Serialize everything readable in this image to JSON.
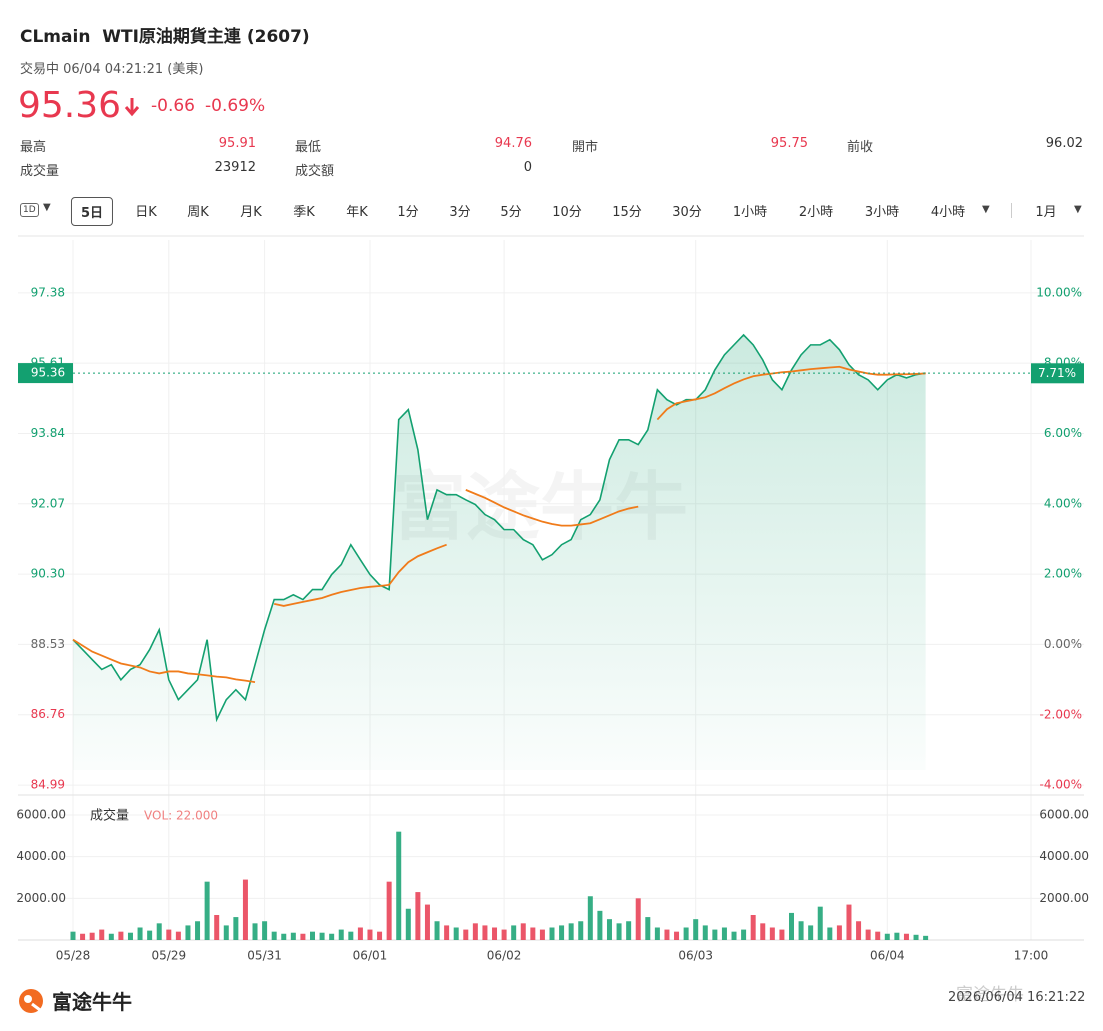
{
  "header": {
    "title": "CLmain  WTI原油期貨主連 (2607)",
    "status": "交易中 06/04 04:21:21 (美東)",
    "price": "95.36",
    "change": "-0.66",
    "change_pct": "-0.69%"
  },
  "stats": [
    [
      "最高",
      "95.91"
    ],
    [
      "最低",
      "94.76"
    ],
    [
      "開市",
      "95.75"
    ],
    [
      "前收",
      "96.02"
    ],
    [
      "成交量",
      "23912"
    ],
    [
      "成交額",
      "0"
    ]
  ],
  "tabs": {
    "icon": "1D",
    "items": [
      "5日",
      "日K",
      "周K",
      "月K",
      "季K",
      "年K",
      "1分",
      "3分",
      "5分",
      "10分",
      "15分",
      "30分",
      "1小時",
      "2小時",
      "3小時",
      "4小時",
      "1月"
    ]
  },
  "footer": {
    "logo_text": "富途牛牛",
    "watermark": "富途牛牛",
    "timestamp": "2026/06/04 16:21:22"
  },
  "chart_data": {
    "type": "line",
    "watermark": "富途牛牛",
    "grid": true,
    "x": [
      0,
      1,
      2,
      3,
      4,
      5,
      6,
      7,
      8,
      9,
      10,
      11,
      12,
      13,
      14,
      15,
      16,
      17,
      18,
      19,
      20,
      21,
      22,
      23,
      24,
      25,
      26,
      27,
      28,
      29,
      30,
      31,
      32,
      33,
      34,
      35,
      36,
      37,
      38,
      39,
      40,
      41,
      42,
      43,
      44,
      45,
      46,
      47,
      48,
      49,
      50,
      51,
      52,
      53,
      54,
      55,
      56,
      57,
      58,
      59,
      60,
      61,
      62,
      63,
      64,
      65,
      66,
      67,
      68,
      69,
      70,
      71,
      72,
      73,
      74,
      75,
      76,
      77,
      78,
      79,
      80,
      81,
      82,
      83,
      84,
      85,
      86,
      87,
      88,
      89
    ],
    "xlim": [
      0,
      100
    ],
    "xticks": [
      {
        "value": 0,
        "label": "05/28"
      },
      {
        "value": 10,
        "label": "05/29"
      },
      {
        "value": 20,
        "label": "05/31"
      },
      {
        "value": 31,
        "label": "06/01"
      },
      {
        "value": 45,
        "label": "06/02"
      },
      {
        "value": 65,
        "label": "06/03"
      },
      {
        "value": 85,
        "label": "06/04"
      },
      {
        "value": 100,
        "label": "17:00"
      }
    ],
    "ylim": [
      84.74,
      98.71
    ],
    "yticks": [
      84.99,
      86.76,
      88.53,
      {
        "value": 90.3,
        "label": "90.30"
      },
      92.07,
      93.84,
      95.61,
      97.38
    ],
    "y2lim": [
      -4.28,
      11.5
    ],
    "y2ticks": [
      {
        "value": -4,
        "label": "-4.00%"
      },
      {
        "value": -2,
        "label": "-2.00%"
      },
      {
        "value": 0,
        "label": "0.00%"
      },
      {
        "value": 2,
        "label": "2.00%"
      },
      {
        "value": 4,
        "label": "4.00%"
      },
      {
        "value": 6,
        "label": "6.00%"
      },
      {
        "value": 8,
        "label": "8.00%"
      },
      {
        "value": 10,
        "label": "10.00%"
      }
    ],
    "last_price": 95.36,
    "last_pct": {
      "value": 7.71,
      "label": "7.71%"
    },
    "series": [
      {
        "color": "#13a070",
        "values": [
          88.65,
          88.4,
          88.15,
          87.9,
          88.02,
          87.64,
          87.9,
          88.02,
          88.4,
          88.9,
          87.64,
          87.14,
          87.39,
          87.64,
          88.65,
          86.64,
          87.14,
          87.39,
          87.14,
          88.02,
          88.9,
          89.66,
          89.66,
          89.78,
          89.66,
          89.91,
          89.91,
          90.29,
          90.54,
          91.04,
          90.66,
          90.29,
          90.03,
          89.91,
          94.19,
          94.44,
          93.43,
          91.67,
          92.42,
          92.3,
          92.3,
          92.17,
          92.05,
          91.8,
          91.67,
          91.42,
          91.42,
          91.17,
          91.04,
          90.66,
          90.79,
          91.04,
          91.17,
          91.67,
          91.8,
          92.17,
          93.18,
          93.68,
          93.68,
          93.56,
          93.93,
          94.94,
          94.69,
          94.56,
          94.69,
          94.69,
          94.94,
          95.44,
          95.82,
          96.07,
          96.32,
          96.07,
          95.69,
          95.19,
          94.94,
          95.44,
          95.82,
          96.07,
          96.07,
          96.2,
          95.95,
          95.57,
          95.32,
          95.19,
          94.94,
          95.19,
          95.32,
          95.24,
          95.32,
          95.36
        ]
      },
      {
        "color": "#f07b1a",
        "values": [
          88.65,
          88.5,
          88.35,
          88.25,
          88.15,
          88.05,
          88.0,
          87.95,
          87.85,
          87.8,
          87.85,
          87.85,
          87.8,
          87.78,
          87.75,
          87.72,
          87.7,
          87.65,
          87.62,
          87.58,
          null,
          89.55,
          89.5,
          89.55,
          89.6,
          89.65,
          89.7,
          89.78,
          89.85,
          89.9,
          89.95,
          89.98,
          90.0,
          90.03,
          90.35,
          90.6,
          90.75,
          90.85,
          90.95,
          91.04,
          null,
          92.42,
          92.32,
          92.22,
          92.1,
          91.98,
          91.88,
          91.78,
          91.7,
          91.62,
          91.56,
          91.52,
          91.52,
          91.55,
          91.58,
          91.68,
          91.78,
          91.88,
          91.95,
          92.0,
          null,
          94.19,
          94.45,
          94.6,
          94.65,
          94.7,
          94.75,
          94.85,
          94.98,
          95.1,
          95.2,
          95.28,
          95.32,
          95.35,
          95.38,
          95.4,
          95.43,
          95.46,
          95.48,
          95.5,
          95.52,
          95.45,
          95.4,
          95.35,
          95.32,
          95.32,
          95.33,
          95.33,
          95.34,
          95.35
        ]
      }
    ],
    "volume": {
      "title": "成交量",
      "vol_label": "VOL: 22.000",
      "up_color": "#13a070",
      "down_color": "#e8384f",
      "ylim": [
        0,
        6960
      ],
      "yticks": [
        {
          "value": 2000,
          "label": "2000.00"
        },
        {
          "value": 4000,
          "label": "4000.00"
        },
        {
          "value": 6000,
          "label": "6000.00"
        }
      ],
      "values": [
        400,
        300,
        350,
        500,
        300,
        400,
        350,
        600,
        450,
        800,
        500,
        400,
        700,
        900,
        2800,
        1200,
        700,
        1100,
        2900,
        800,
        900,
        400,
        300,
        350,
        300,
        400,
        350,
        300,
        500,
        400,
        600,
        500,
        400,
        2800,
        5200,
        1500,
        2300,
        1700,
        900,
        700,
        600,
        500,
        800,
        700,
        600,
        500,
        700,
        800,
        600,
        500,
        600,
        700,
        800,
        900,
        2100,
        1400,
        1000,
        800,
        900,
        2000,
        1100,
        600,
        500,
        400,
        600,
        1000,
        700,
        500,
        600,
        400,
        500,
        1200,
        800,
        600,
        500,
        1300,
        900,
        700,
        1600,
        600,
        700,
        1700,
        900,
        500,
        400,
        300,
        350,
        300,
        250,
        200
      ]
    }
  }
}
